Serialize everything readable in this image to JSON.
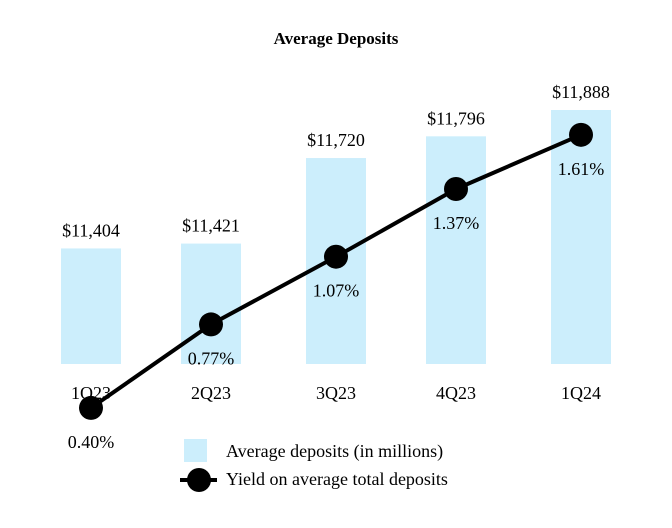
{
  "chart_data": {
    "type": "bar",
    "title": "Average Deposits",
    "categories": [
      "1Q23",
      "2Q23",
      "3Q23",
      "4Q23",
      "1Q24"
    ],
    "series": [
      {
        "name": "Average deposits (in millions)",
        "kind": "bar",
        "values": [
          11404,
          11421,
          11720,
          11796,
          11888
        ],
        "labels": [
          "$11,404",
          "$11,421",
          "$11,720",
          "$11,796",
          "$11,888"
        ],
        "color": "#cceefc"
      },
      {
        "name": "Yield on average total deposits",
        "kind": "line",
        "values": [
          0.4,
          0.77,
          1.07,
          1.37,
          1.61
        ],
        "labels": [
          "0.40%",
          "0.77%",
          "1.07%",
          "1.37%",
          "1.61%"
        ],
        "color": "#000000"
      }
    ],
    "legend": [
      {
        "label": "Average deposits (in millions)"
      },
      {
        "label": "Yield on average total deposits"
      }
    ],
    "legend_position": "bottom",
    "grid": false
  }
}
